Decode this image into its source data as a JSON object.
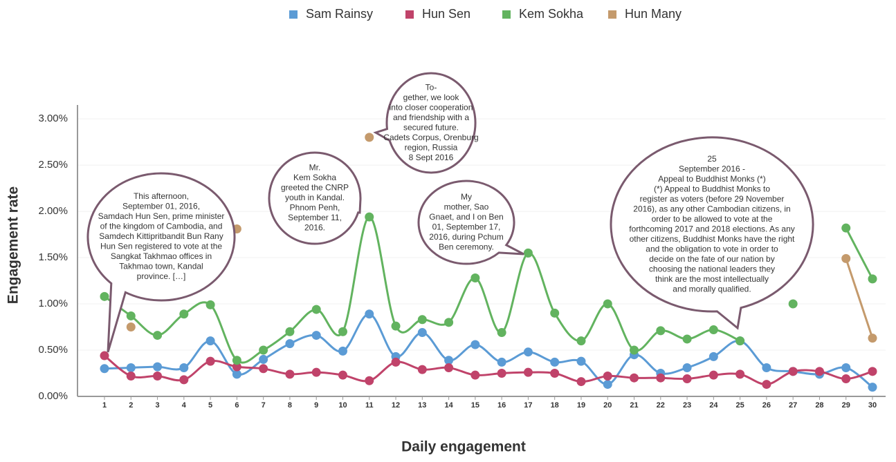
{
  "chart_data": {
    "type": "line",
    "xlabel": "Daily engagement",
    "ylabel": "Engagement rate",
    "categories": [
      "1",
      "2",
      "3",
      "4",
      "5",
      "6",
      "7",
      "8",
      "9",
      "10",
      "11",
      "12",
      "13",
      "14",
      "15",
      "16",
      "17",
      "18",
      "19",
      "20",
      "21",
      "22",
      "23",
      "24",
      "25",
      "26",
      "27",
      "28",
      "29",
      "30"
    ],
    "series": [
      {
        "name": "Sam Rainsy",
        "color": "#5b9bd5",
        "values": [
          0.3,
          0.31,
          0.32,
          0.31,
          0.6,
          0.24,
          0.4,
          0.57,
          0.66,
          0.49,
          0.89,
          0.43,
          0.69,
          0.39,
          0.56,
          0.37,
          0.48,
          0.37,
          0.38,
          0.13,
          0.45,
          0.25,
          0.31,
          0.43,
          0.6,
          0.31,
          0.27,
          0.24,
          0.31,
          0.1
        ]
      },
      {
        "name": "Hun Sen",
        "color": "#c0436a",
        "values": [
          0.44,
          0.22,
          0.22,
          0.18,
          0.38,
          0.32,
          0.3,
          0.24,
          0.26,
          0.23,
          0.17,
          0.37,
          0.29,
          0.31,
          0.23,
          0.25,
          0.26,
          0.25,
          0.16,
          0.22,
          0.2,
          0.2,
          0.19,
          0.23,
          0.24,
          0.13,
          0.27,
          0.27,
          0.19,
          0.27
        ]
      },
      {
        "name": "Kem Sokha",
        "color": "#62b35f",
        "values": [
          1.08,
          0.87,
          0.66,
          0.89,
          0.99,
          0.39,
          0.5,
          0.7,
          0.94,
          0.7,
          1.94,
          0.76,
          0.83,
          0.8,
          1.28,
          0.69,
          1.55,
          0.9,
          0.6,
          1.0,
          0.5,
          0.71,
          0.62,
          0.72,
          0.6,
          null,
          1.0,
          null,
          1.82,
          1.27
        ]
      },
      {
        "name": "Hun Many",
        "color": "#c49a6c",
        "values": [
          null,
          0.75,
          null,
          null,
          null,
          1.81,
          null,
          null,
          null,
          null,
          2.8,
          null,
          null,
          null,
          null,
          null,
          null,
          null,
          null,
          null,
          null,
          null,
          null,
          null,
          null,
          null,
          null,
          null,
          1.49,
          0.63
        ]
      }
    ],
    "ylim": [
      0,
      3.15
    ],
    "yticks": [
      {
        "value": 0,
        "label": "0.00%"
      },
      {
        "value": 0.5,
        "label": "0.50%"
      },
      {
        "value": 1,
        "label": "1.00%"
      },
      {
        "value": 1.5,
        "label": "1.50%"
      },
      {
        "value": 2,
        "label": "2.00%"
      },
      {
        "value": 2.5,
        "label": "2.50%"
      },
      {
        "value": 3,
        "label": "3.00%"
      }
    ],
    "grid": true,
    "legend": "top",
    "annotations": [
      {
        "lines": [
          "This afternoon,",
          "September 01, 2016,",
          "Samdach Hun Sen, prime minister",
          "of the kingdom of Cambodia, and",
          "Samdech Kittipritbandit Bun Rany",
          "Hun Sen registered to vote at the",
          "Sangkat Takhmao offices in",
          "Takhmao town, Kandal",
          "province. […]"
        ]
      },
      {
        "lines": [
          "Mr.",
          "Kem Sokha",
          "greeted the CNRP",
          "youth in Kandal.",
          "Phnom Penh,",
          "September 11,",
          "2016."
        ]
      },
      {
        "lines": [
          "To-",
          "gether, we look",
          "into closer cooperation",
          "and friendship with a",
          "secured future.",
          "Cadets Corpus, Orenburg",
          "region, Russia",
          "8 Sept 2016"
        ]
      },
      {
        "lines": [
          "My",
          "mother, Sao",
          "Gnaet, and I on Ben",
          "01, September 17,",
          "2016, during Pchum",
          "Ben ceremony."
        ]
      },
      {
        "lines": [
          "25",
          "September 2016 -",
          "Appeal to Buddhist Monks (*)",
          "(*) Appeal to Buddhist Monks to",
          "register as voters (before 29 November",
          "2016), as any other Cambodian citizens, in",
          "order to be allowed to vote at the",
          "forthcoming 2017 and 2018 elections. As any",
          "other citizens, Buddhist Monks have the right",
          "and the obligation to vote in order to",
          "decide on the fate of our nation by",
          "choosing the national leaders they",
          "think are the most intellectually",
          "and morally qualified."
        ]
      }
    ]
  }
}
